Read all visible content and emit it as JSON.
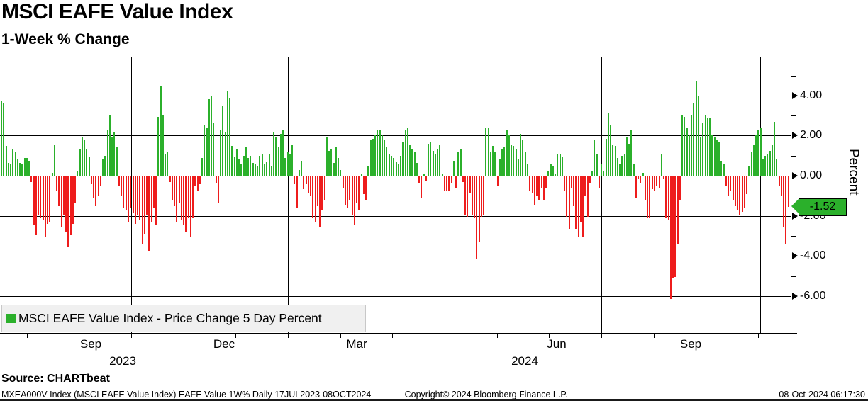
{
  "header": {
    "title": "MSCI EAFE Value Index",
    "subtitle": "1-Week % Change"
  },
  "legend": {
    "label": "MSCI EAFE Value Index - Price Change 5 Day Percent",
    "swatch_color": "#2bb02b"
  },
  "last_value_tag": {
    "text": "-1.52",
    "value": -1.52,
    "bg_color": "#2bb02b"
  },
  "y_axis": {
    "label": "Percent",
    "major_tick_labels": [
      "4.00",
      "2.00",
      "0.00",
      "-2.00",
      "-4.00",
      "-6.00"
    ],
    "major_tick_values": [
      4,
      2,
      0,
      -2,
      -4,
      -6
    ],
    "minor_tick_values": [
      5,
      3,
      1,
      -1,
      -3,
      -5
    ]
  },
  "x_axis": {
    "month_labels": [
      {
        "text": "Sep",
        "x": 128
      },
      {
        "text": "Dec",
        "x": 316
      },
      {
        "text": "Mar",
        "x": 503
      },
      {
        "text": "Jun",
        "x": 785
      },
      {
        "text": "Sep",
        "x": 974
      }
    ],
    "year_labels": [
      {
        "text": "2023",
        "x": 173
      },
      {
        "text": "2024",
        "x": 740
      }
    ],
    "year_divider_x": 348,
    "quarter_gridlines_x": [
      185,
      406,
      627,
      848,
      1072
    ]
  },
  "footer": {
    "source": "Source: CHARTbeat",
    "left": "MXEA000V Index (MSCI EAFE Value Index) EAFE Value 1W%  Daily 17JUL2023-08OCT2024",
    "center": "Copyright© 2024 Bloomberg Finance L.P.",
    "right": "08-Oct-2024 06:17:30"
  },
  "chart_data": {
    "type": "bar",
    "title": "MSCI EAFE Value Index",
    "subtitle": "1-Week % Change",
    "ylabel": "Percent",
    "ylim": [
      -7.0,
      5.95
    ],
    "x_range": "Daily 17JUL2023-08OCT2024",
    "grid": "quarterly vertical + 2.00-step horizontal, black on white",
    "legend_position": "bottom-left inside plot",
    "positive_color": "#2bb02b",
    "negative_color": "#ee1c1c",
    "last_value": -1.52,
    "note": "values estimated from pixels; one bar per trading day Jul 2023 - Oct 2024",
    "series": [
      {
        "name": "MSCI EAFE Value Index - Price Change 5 Day Percent",
        "values": [
          3.7,
          3.65,
          1.5,
          0.65,
          0.6,
          1.3,
          1.15,
          0.8,
          0.65,
          0.55,
          0.9,
          0.9,
          0.75,
          -0.3,
          -2.4,
          -2.9,
          -1.9,
          -2.05,
          -2.15,
          -3.05,
          -2.35,
          -2.3,
          0.15,
          1.55,
          -0.7,
          -1.5,
          -2.55,
          -1.95,
          -2.8,
          -3.5,
          -2.9,
          -2.35,
          -1.35,
          0.2,
          1.3,
          1.9,
          1.75,
          1.3,
          0.95,
          -0.4,
          -1.1,
          -1.5,
          -0.95,
          -0.5,
          0.8,
          1.0,
          2.25,
          3.0,
          1.9,
          2.2,
          1.4,
          -0.5,
          -1.0,
          -1.55,
          -1.7,
          -2.3,
          -1.6,
          -1.85,
          -2.35,
          -1.9,
          -2.2,
          -3.4,
          -2.85,
          -1.95,
          -3.7,
          -2.3,
          -1.6,
          -2.4,
          2.95,
          4.45,
          3.0,
          1.1,
          1.15,
          -0.3,
          -1.2,
          -1.5,
          -2.3,
          -1.35,
          -2.15,
          -2.4,
          -2.8,
          -2.05,
          -3.05,
          -2.05,
          -0.5,
          -0.75,
          -0.4,
          0.9,
          2.5,
          2.4,
          3.8,
          3.95,
          2.6,
          -0.35,
          -1.3,
          2.3,
          3.5,
          2.2,
          4.25,
          3.9,
          1.5,
          0.95,
          1.3,
          0.8,
          0.55,
          1.0,
          1.4,
          0.9,
          1.0,
          0.65,
          0.6,
          0.45,
          1.0,
          1.05,
          0.55,
          0.7,
          1.1,
          0.45,
          2.15,
          1.9,
          1.4,
          2.1,
          2.25,
          0.9,
          1.15,
          1.1,
          1.55,
          -0.4,
          -1.6,
          0.3,
          0.75,
          -0.65,
          -0.4,
          -0.8,
          -1.0,
          -2.1,
          -2.3,
          -1.5,
          -2.5,
          -1.7,
          -1.2,
          1.95,
          1.25,
          1.3,
          0.65,
          1.4,
          0.9,
          0.3,
          -0.6,
          -1.4,
          -1.6,
          -1.2,
          -1.9,
          -2.4,
          -1.3,
          -1.65,
          0.1,
          -0.9,
          -1.2,
          0.5,
          1.75,
          1.85,
          2.0,
          2.3,
          2.25,
          2.0,
          1.75,
          1.45,
          1.1,
          1.0,
          0.9,
          0.7,
          0.55,
          1.0,
          1.65,
          2.3,
          2.35,
          1.55,
          1.3,
          1.15,
          0.65,
          -0.35,
          -1.1,
          0.1,
          -0.2,
          1.6,
          1.7,
          1.25,
          1.1,
          1.35,
          1.55,
          0.1,
          -0.75,
          -0.7,
          -0.75,
          -0.35,
          0.75,
          -0.55,
          1.2,
          1.35,
          -0.3,
          -1.95,
          -2.0,
          -0.8,
          -1.95,
          -2.05,
          -4.15,
          -3.25,
          -2.0,
          -1.9,
          2.4,
          2.35,
          1.2,
          1.5,
          1.15,
          -0.5,
          0.85,
          1.35,
          1.45,
          2.3,
          2.05,
          1.55,
          1.5,
          1.35,
          0.8,
          2.1,
          1.75,
          1.2,
          0.6,
          -0.75,
          -0.85,
          -1.4,
          -0.95,
          -1.2,
          -0.55,
          -1.2,
          -0.6,
          0.2,
          0.55,
          0.5,
          0.1,
          1.05,
          1.1,
          0.95,
          -0.7,
          -2.0,
          -2.6,
          -0.6,
          -1.5,
          -2.6,
          -3.05,
          -2.3,
          -3.05,
          -1.0,
          -2.0,
          -0.35,
          0.2,
          1.75,
          1.05,
          -0.55,
          0.55,
          0.25,
          1.85,
          3.1,
          2.5,
          1.55,
          1.5,
          0.9,
          0.55,
          1.0,
          1.05,
          1.95,
          1.6,
          2.25,
          0.55,
          -1.1,
          -0.1,
          -0.35,
          0.15,
          -1.15,
          -2.1,
          -2.1,
          -0.65,
          -0.75,
          -0.5,
          -0.55,
          1.1,
          -0.1,
          -2.1,
          -2.15,
          -6.1,
          -5.1,
          -5.0,
          -3.4,
          -1.15,
          3.05,
          2.95,
          2.4,
          2.0,
          3.0,
          3.6,
          4.75,
          3.95,
          1.9,
          2.65,
          3.0,
          2.9,
          2.85,
          2.0,
          1.95,
          1.75,
          1.7,
          0.75,
          0.55,
          -0.5,
          -0.95,
          -0.75,
          -1.15,
          -1.5,
          -1.7,
          -1.95,
          -1.75,
          -1.55,
          -0.9,
          0.5,
          1.15,
          1.55,
          2.0,
          2.3,
          2.35,
          0.85,
          1.0,
          1.1,
          1.25,
          1.55,
          2.7,
          0.85,
          -0.45,
          -1.0,
          -2.5,
          -3.4,
          -1.52
        ]
      }
    ]
  }
}
